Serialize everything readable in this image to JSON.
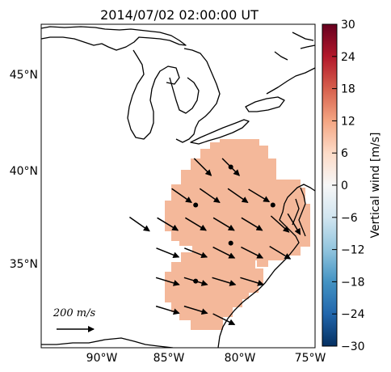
{
  "title": "2014/07/02 02:00:00 UT",
  "map": {
    "lat_ticks": [
      "45°N",
      "40°N",
      "35°N"
    ],
    "lon_ticks": [
      "90°W",
      "85°W",
      "80°W",
      "75°W"
    ],
    "lon_range": [
      -94,
      -74.5
    ],
    "lat_range": [
      30.5,
      47.5
    ],
    "field_color": "#f4b89a",
    "field_value_ms": 7
  },
  "vectors": [
    {
      "lon": -82.5,
      "lat": 40.0,
      "u": 1,
      "v": -1
    },
    {
      "lon": -80.5,
      "lat": 40.0,
      "u": 1,
      "v": -1
    },
    {
      "lon": -84.0,
      "lat": 38.5,
      "u": 1,
      "v": -0.7
    },
    {
      "lon": -82.0,
      "lat": 38.5,
      "u": 1,
      "v": -0.7
    },
    {
      "lon": -80.0,
      "lat": 38.5,
      "u": 1,
      "v": -0.7
    },
    {
      "lon": -78.5,
      "lat": 38.5,
      "u": 1,
      "v": -0.6
    },
    {
      "lon": -87.0,
      "lat": 37.0,
      "u": 1,
      "v": -0.7
    },
    {
      "lon": -85.0,
      "lat": 37.0,
      "u": 1,
      "v": -0.6
    },
    {
      "lon": -83.0,
      "lat": 37.0,
      "u": 1,
      "v": -0.6
    },
    {
      "lon": -81.0,
      "lat": 37.0,
      "u": 1,
      "v": -0.6
    },
    {
      "lon": -79.0,
      "lat": 37.0,
      "u": 1,
      "v": -0.6
    },
    {
      "lon": -77.0,
      "lat": 37.0,
      "u": 1,
      "v": -0.9
    },
    {
      "lon": -76.0,
      "lat": 37.0,
      "u": 0.6,
      "v": -1
    },
    {
      "lon": -85.0,
      "lat": 35.5,
      "u": 1,
      "v": -0.4
    },
    {
      "lon": -83.0,
      "lat": 35.5,
      "u": 1,
      "v": -0.4
    },
    {
      "lon": -81.0,
      "lat": 35.5,
      "u": 1,
      "v": -0.5
    },
    {
      "lon": -79.0,
      "lat": 35.5,
      "u": 1,
      "v": -0.5
    },
    {
      "lon": -77.0,
      "lat": 35.5,
      "u": 1,
      "v": -0.6
    },
    {
      "lon": -85.0,
      "lat": 34.0,
      "u": 1,
      "v": -0.3
    },
    {
      "lon": -83.0,
      "lat": 34.0,
      "u": 1,
      "v": -0.3
    },
    {
      "lon": -81.0,
      "lat": 34.0,
      "u": 1,
      "v": -0.3
    },
    {
      "lon": -79.0,
      "lat": 34.0,
      "u": 1,
      "v": -0.3
    },
    {
      "lon": -85.0,
      "lat": 32.5,
      "u": 1,
      "v": -0.3
    },
    {
      "lon": -83.0,
      "lat": 32.5,
      "u": 1,
      "v": -0.3
    },
    {
      "lon": -81.0,
      "lat": 32.0,
      "u": 1,
      "v": -0.5
    }
  ],
  "stations": [
    {
      "lon": -80.5,
      "lat": 40.0
    },
    {
      "lon": -83.0,
      "lat": 38.0
    },
    {
      "lon": -77.5,
      "lat": 38.0
    },
    {
      "lon": -80.5,
      "lat": 36.0
    },
    {
      "lon": -83.0,
      "lat": 34.0
    }
  ],
  "reference_arrow": {
    "label": "200 m/s",
    "value_ms": 200
  },
  "colorbar": {
    "label": "Vertical wind [m/s]",
    "ticks": [
      "30",
      "24",
      "18",
      "12",
      "6",
      "0",
      "−6",
      "−12",
      "−18",
      "−24",
      "−30"
    ],
    "min": -30,
    "max": 30,
    "colormap": "RdBu_r"
  }
}
